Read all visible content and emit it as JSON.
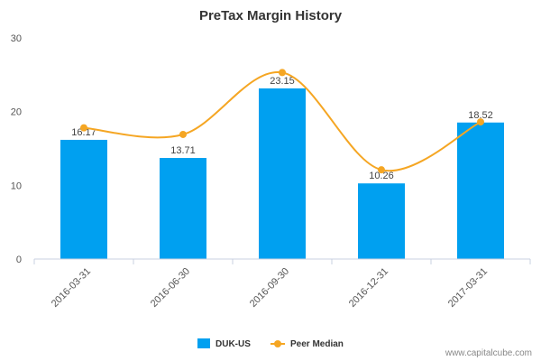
{
  "chart_data": {
    "type": "bar",
    "title": "PreTax Margin History",
    "categories": [
      "2016-03-31",
      "2016-06-30",
      "2016-09-30",
      "2016-12-31",
      "2017-03-31"
    ],
    "series": [
      {
        "name": "DUK-US",
        "kind": "bar",
        "color": "#00a0f0",
        "values": [
          16.17,
          13.71,
          23.15,
          10.26,
          18.52
        ],
        "labels": [
          "16.17",
          "13.71",
          "23.15",
          "10.26",
          "18.52"
        ]
      },
      {
        "name": "Peer Median",
        "kind": "line",
        "color": "#f5a623",
        "values": [
          17.8,
          16.9,
          25.3,
          12.1,
          18.6
        ]
      }
    ],
    "yticks": [
      "0",
      "10",
      "20",
      "30"
    ],
    "ylim": [
      0,
      30
    ],
    "grid": false,
    "legend": "bottom"
  },
  "credit": "www.capitalcube.com"
}
